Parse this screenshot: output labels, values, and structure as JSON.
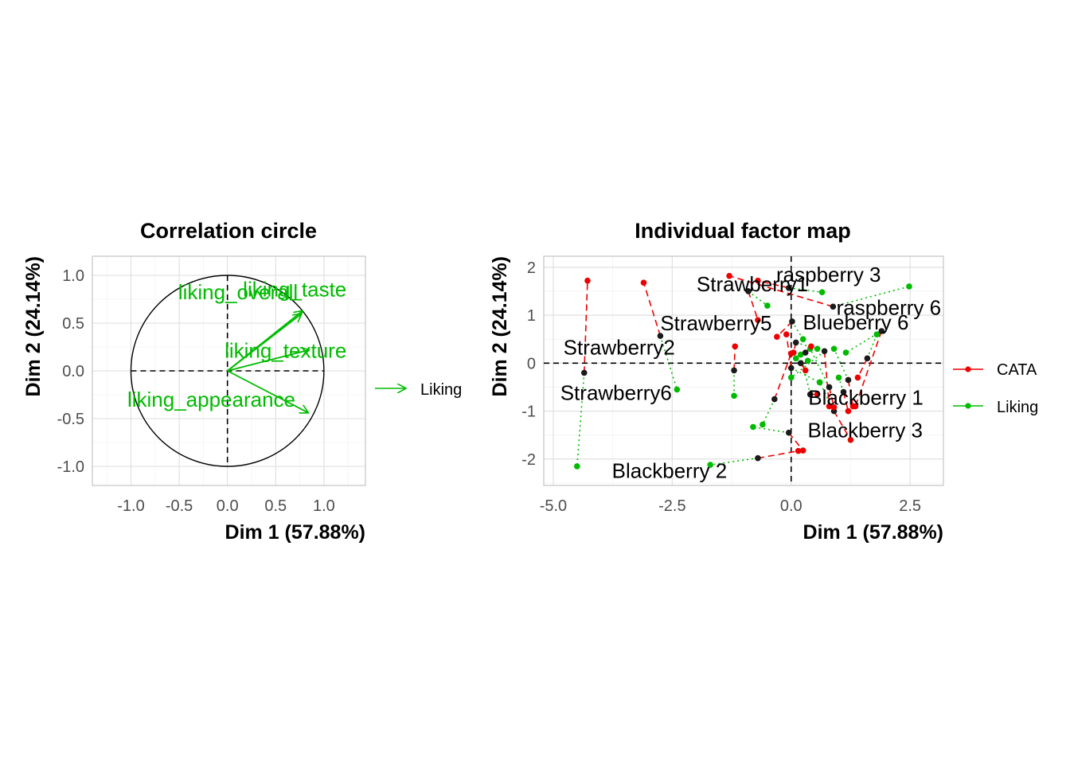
{
  "colors": {
    "cata": "#EE0000",
    "liking": "#00BB00",
    "mean_point": "#1a1a1a"
  },
  "chart_data": [
    {
      "type": "scatter",
      "title": "Correlation circle",
      "xlabel": "Dim 1 (57.88%)",
      "ylabel": "Dim 2 (24.14%)",
      "xlim": [
        -1.4,
        1.43
      ],
      "ylim": [
        -1.2,
        1.2
      ],
      "xticks": [
        -1.0,
        -0.5,
        0.0,
        0.5,
        1.0
      ],
      "xtick_labels": [
        "-1.0",
        "-0.5",
        "0.0",
        "0.5",
        "1.0"
      ],
      "yticks": [
        -1.0,
        -0.5,
        0.0,
        0.5,
        1.0
      ],
      "ytick_labels": [
        "-1.0",
        "-0.5",
        "0.0",
        "0.5",
        "1.0"
      ],
      "grid": true,
      "unit_circle": true,
      "vectors": [
        {
          "name": "liking_taste",
          "x": 0.78,
          "y": 0.63
        },
        {
          "name": "liking_overall",
          "x": 0.77,
          "y": 0.6
        },
        {
          "name": "liking_texture",
          "x": 0.85,
          "y": 0.22
        },
        {
          "name": "liking_appearance",
          "x": 0.84,
          "y": -0.44
        }
      ],
      "legend": {
        "position": "right",
        "entries": [
          "Liking"
        ]
      }
    },
    {
      "type": "scatter",
      "title": "Individual factor map",
      "xlabel": "Dim 1 (57.88%)",
      "ylabel": "Dim 2 (24.14%)",
      "xlim": [
        -5.2,
        3.2
      ],
      "ylim": [
        -2.55,
        2.23
      ],
      "xticks": [
        -5.0,
        -2.5,
        0.0,
        2.5
      ],
      "xtick_labels": [
        "-5.0",
        "-2.5",
        "0.0",
        "2.5"
      ],
      "yticks": [
        -2,
        -1,
        0,
        1,
        2
      ],
      "ytick_labels": [
        "-2",
        "-1",
        "0",
        "1",
        "2"
      ],
      "grid": true,
      "legend": {
        "position": "right",
        "entries": [
          "CATA",
          "Liking"
        ]
      },
      "individuals": [
        {
          "name": "raspberry 3",
          "x": -0.05,
          "y": 1.57,
          "cata": [
            -0.7,
            1.72
          ],
          "liking": [
            0.65,
            1.48
          ]
        },
        {
          "name": "raspberry 6",
          "x": 0.88,
          "y": 1.18,
          "cata": [
            -1.3,
            1.82
          ],
          "liking": [
            2.48,
            1.6
          ]
        },
        {
          "name": "Strawberry1",
          "x": -0.9,
          "y": 1.5,
          "cata": [
            -0.7,
            0.9
          ],
          "liking": [
            -0.5,
            1.2
          ]
        },
        {
          "name": "Blueberry 6",
          "x": 0.02,
          "y": 0.87,
          "cata": [
            -0.3,
            0.55
          ],
          "liking": [
            0.25,
            0.5
          ]
        },
        {
          "name": "Strawberry5",
          "x": -2.75,
          "y": 0.57,
          "cata": [
            -3.1,
            1.68
          ],
          "liking": [
            -2.4,
            -0.55
          ]
        },
        {
          "name": "Strawberry2",
          "x": 0.1,
          "y": 0.43,
          "cata": [
            0.05,
            0.22
          ],
          "liking": [
            0.55,
            0.3
          ]
        },
        {
          "name": "Strawberry6",
          "x": -4.35,
          "y": -0.2,
          "cata": [
            -4.28,
            1.72
          ],
          "liking": [
            -4.5,
            -2.15
          ]
        },
        {
          "name": "Blackberry 3",
          "x": -0.05,
          "y": -1.45,
          "cata": [
            0.25,
            -1.82
          ],
          "liking": [
            -0.8,
            -1.33
          ]
        },
        {
          "name": "Blackberry 2",
          "x": -0.7,
          "y": -1.98,
          "cata": [
            0.15,
            -1.83
          ],
          "liking": [
            -1.7,
            -2.12
          ]
        },
        {
          "name": "Blackberry 1",
          "x": 0.9,
          "y": -1.0,
          "cata": [
            1.25,
            -1.6
          ],
          "liking": [
            0.6,
            -0.4
          ]
        },
        {
          "name": "",
          "x": 1.6,
          "y": 0.1,
          "cata": [
            1.4,
            -0.3
          ],
          "liking": [
            1.8,
            0.6
          ]
        },
        {
          "name": "",
          "x": 1.9,
          "y": 0.67,
          "cata": [
            1.35,
            -0.9
          ],
          "liking": [
            1.15,
            0.22
          ]
        },
        {
          "name": "",
          "x": 1.2,
          "y": -0.35,
          "cata": [
            1.3,
            -0.9
          ],
          "liking": [
            0.9,
            0.3
          ]
        },
        {
          "name": "",
          "x": 0.8,
          "y": -0.5,
          "cata": [
            0.9,
            -0.92
          ],
          "liking": [
            0.4,
            0.3
          ]
        },
        {
          "name": "",
          "x": 0.4,
          "y": -0.65,
          "cata": [
            0.55,
            -0.65
          ],
          "liking": [
            0.2,
            0.18
          ]
        },
        {
          "name": "",
          "x": 0.2,
          "y": 0.0,
          "cata": [
            0.3,
            -0.15
          ],
          "liking": [
            0.35,
            0.05
          ]
        },
        {
          "name": "",
          "x": -0.35,
          "y": -0.75,
          "cata": [
            0.0,
            0.2
          ],
          "liking": [
            -0.6,
            -1.28
          ]
        },
        {
          "name": "",
          "x": -1.2,
          "y": -0.15,
          "cata": [
            -1.18,
            0.35
          ],
          "liking": [
            -1.2,
            -0.68
          ]
        },
        {
          "name": "",
          "x": 0.0,
          "y": -0.1,
          "cata": [
            -0.1,
            0.6
          ],
          "liking": [
            0.6,
            -0.4
          ]
        },
        {
          "name": "",
          "x": 0.3,
          "y": 0.22,
          "cata": [
            0.42,
            0.35
          ],
          "liking": [
            0.1,
            0.1
          ]
        },
        {
          "name": "",
          "x": 0.7,
          "y": 0.25,
          "cata": [
            0.8,
            -0.9
          ],
          "liking": [
            0.0,
            -0.3
          ]
        },
        {
          "name": "",
          "x": 1.1,
          "y": -0.6,
          "cata": [
            1.2,
            -1.0
          ],
          "liking": [
            1.0,
            -0.3
          ]
        }
      ]
    }
  ]
}
